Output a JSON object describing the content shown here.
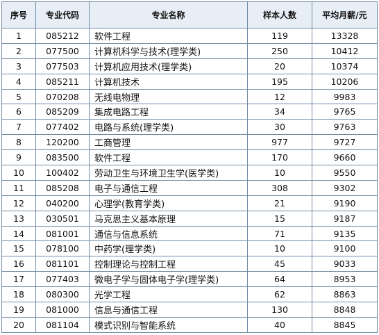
{
  "table": {
    "headers": {
      "index": "序号",
      "code": "专业代码",
      "name": "专业名称",
      "sample": "样本人数",
      "salary": "平均月薪/元"
    },
    "rows": [
      {
        "index": "1",
        "code": "085212",
        "name": "软件工程",
        "sample": "119",
        "salary": "13328"
      },
      {
        "index": "2",
        "code": "077500",
        "name": "计算机科学与技术(理学类)",
        "sample": "250",
        "salary": "10412"
      },
      {
        "index": "3",
        "code": "077503",
        "name": "计算机应用技术(理学类)",
        "sample": "20",
        "salary": "10374"
      },
      {
        "index": "4",
        "code": "085211",
        "name": "计算机技术",
        "sample": "195",
        "salary": "10206"
      },
      {
        "index": "5",
        "code": "070208",
        "name": "无线电物理",
        "sample": "12",
        "salary": "9983"
      },
      {
        "index": "6",
        "code": "085209",
        "name": "集成电路工程",
        "sample": "34",
        "salary": "9765"
      },
      {
        "index": "7",
        "code": "077402",
        "name": "电路与系统(理学类)",
        "sample": "30",
        "salary": "9763"
      },
      {
        "index": "8",
        "code": "120200",
        "name": "工商管理",
        "sample": "977",
        "salary": "9727"
      },
      {
        "index": "9",
        "code": "083500",
        "name": "软件工程",
        "sample": "170",
        "salary": "9660"
      },
      {
        "index": "10",
        "code": "100402",
        "name": "劳动卫生与环境卫生学(医学类)",
        "sample": "10",
        "salary": "9550"
      },
      {
        "index": "11",
        "code": "085208",
        "name": "电子与通信工程",
        "sample": "308",
        "salary": "9302"
      },
      {
        "index": "12",
        "code": "040200",
        "name": "心理学(教育学类)",
        "sample": "21",
        "salary": "9190"
      },
      {
        "index": "13",
        "code": "030501",
        "name": "马克思主义基本原理",
        "sample": "15",
        "salary": "9187"
      },
      {
        "index": "14",
        "code": "081001",
        "name": "通信与信息系统",
        "sample": "71",
        "salary": "9135"
      },
      {
        "index": "15",
        "code": "078100",
        "name": "中药学(理学类)",
        "sample": "10",
        "salary": "9100"
      },
      {
        "index": "16",
        "code": "081101",
        "name": "控制理论与控制工程",
        "sample": "45",
        "salary": "9033"
      },
      {
        "index": "17",
        "code": "077403",
        "name": "微电子学与固体电子学(理学类)",
        "sample": "64",
        "salary": "8953"
      },
      {
        "index": "18",
        "code": "080300",
        "name": "光学工程",
        "sample": "62",
        "salary": "8863"
      },
      {
        "index": "19",
        "code": "081000",
        "name": "信息与通信工程",
        "sample": "130",
        "salary": "8848"
      },
      {
        "index": "20",
        "code": "081104",
        "name": "模式识别与智能系统",
        "sample": "40",
        "salary": "8845"
      }
    ]
  }
}
